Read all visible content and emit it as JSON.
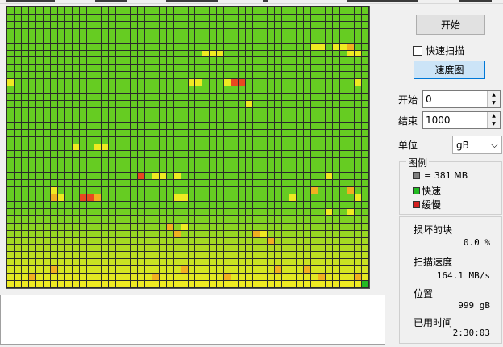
{
  "controls": {
    "start_label": "开始",
    "quick_scan_label": "快速扫描",
    "speed_map_label": "速度图",
    "start_field_label": "开始",
    "start_value": "0",
    "end_field_label": "结束",
    "end_value": "1000",
    "unit_label": "单位",
    "unit_value": "gB"
  },
  "legend": {
    "title": "图例",
    "block_size": "= 381 MB",
    "fast_label": "快速",
    "slow_label": "缓慢",
    "colors": {
      "block": "#808080",
      "fast": "#22bb22",
      "slow": "#d42020"
    }
  },
  "stats": {
    "damaged_label": "损坏的块",
    "damaged_value": "0.0 %",
    "speed_label": "扫描速度",
    "speed_value": "164.1 MB/s",
    "position_label": "位置",
    "position_value": "999 gB",
    "elapsed_label": "已用时间",
    "elapsed_value": "2:30:03"
  },
  "grid": {
    "cols": 50,
    "rows": 39,
    "palette": {
      "G": "#66cc22",
      "Y": "#eeea22",
      "O": "#f0b020",
      "R": "#e84820",
      "B": "#22bb22"
    },
    "special_cells": [
      [
        5,
        45,
        "Y"
      ],
      [
        5,
        46,
        "Y"
      ],
      [
        5,
        42,
        "Y"
      ],
      [
        5,
        43,
        "Y"
      ],
      [
        5,
        47,
        "O"
      ],
      [
        6,
        29,
        "Y"
      ],
      [
        6,
        28,
        "Y"
      ],
      [
        6,
        27,
        "Y"
      ],
      [
        6,
        47,
        "Y"
      ],
      [
        6,
        48,
        "Y"
      ],
      [
        10,
        31,
        "R"
      ],
      [
        10,
        32,
        "R"
      ],
      [
        10,
        30,
        "Y"
      ],
      [
        10,
        25,
        "Y"
      ],
      [
        10,
        26,
        "Y"
      ],
      [
        10,
        0,
        "Y"
      ],
      [
        10,
        48,
        "Y"
      ],
      [
        13,
        33,
        "Y"
      ],
      [
        19,
        12,
        "Y"
      ],
      [
        19,
        13,
        "Y"
      ],
      [
        19,
        9,
        "Y"
      ],
      [
        23,
        18,
        "R"
      ],
      [
        23,
        20,
        "Y"
      ],
      [
        23,
        21,
        "Y"
      ],
      [
        23,
        23,
        "Y"
      ],
      [
        23,
        44,
        "Y"
      ],
      [
        25,
        6,
        "Y"
      ],
      [
        25,
        42,
        "O"
      ],
      [
        25,
        47,
        "O"
      ],
      [
        26,
        6,
        "O"
      ],
      [
        26,
        7,
        "Y"
      ],
      [
        26,
        10,
        "R"
      ],
      [
        26,
        11,
        "R"
      ],
      [
        26,
        12,
        "O"
      ],
      [
        26,
        23,
        "Y"
      ],
      [
        26,
        24,
        "Y"
      ],
      [
        26,
        39,
        "Y"
      ],
      [
        26,
        48,
        "Y"
      ],
      [
        28,
        44,
        "Y"
      ],
      [
        28,
        47,
        "Y"
      ],
      [
        30,
        22,
        "O"
      ],
      [
        30,
        24,
        "Y"
      ],
      [
        31,
        23,
        "O"
      ],
      [
        31,
        34,
        "O"
      ],
      [
        31,
        35,
        "Y"
      ],
      [
        32,
        36,
        "O"
      ],
      [
        36,
        6,
        "O"
      ],
      [
        36,
        24,
        "O"
      ],
      [
        36,
        37,
        "O"
      ],
      [
        36,
        41,
        "O"
      ],
      [
        37,
        3,
        "O"
      ],
      [
        37,
        20,
        "O"
      ],
      [
        37,
        30,
        "O"
      ],
      [
        37,
        43,
        "O"
      ],
      [
        37,
        48,
        "O"
      ],
      [
        38,
        49,
        "B"
      ]
    ]
  }
}
